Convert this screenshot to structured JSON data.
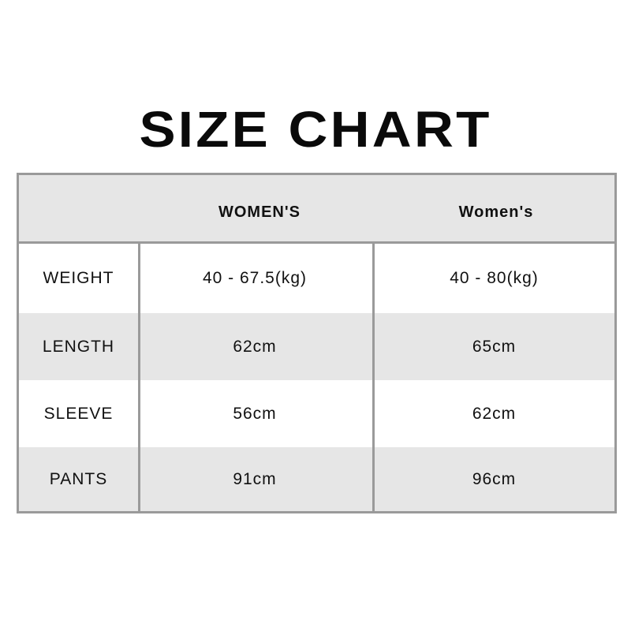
{
  "title": "SIZE CHART",
  "table": {
    "headers": [
      "",
      "WOMEN'S",
      "Women's"
    ],
    "rows": [
      {
        "label": "WEIGHT",
        "values": [
          "40 - 67.5(kg)",
          "40 - 80(kg)"
        ]
      },
      {
        "label": "LENGTH",
        "values": [
          "62cm",
          "65cm"
        ]
      },
      {
        "label": "SLEEVE",
        "values": [
          "56cm",
          "62cm"
        ]
      },
      {
        "label": "PANTS",
        "values": [
          "91cm",
          "96cm"
        ]
      }
    ]
  },
  "colors": {
    "header_bg": "#e6e6e6",
    "border": "#9a9a9a",
    "text": "#111111"
  }
}
